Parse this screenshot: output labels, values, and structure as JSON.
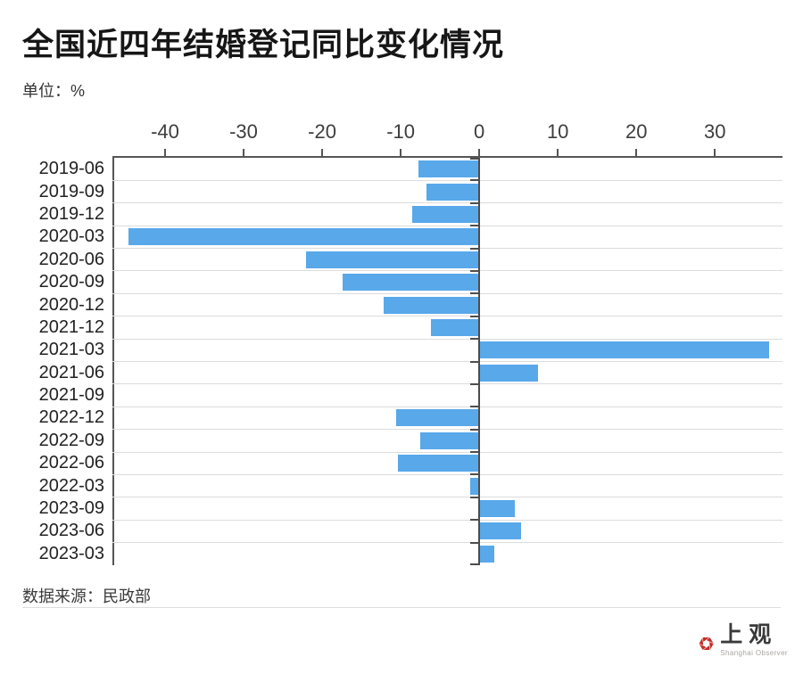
{
  "header": {
    "unit_label": "单位：%"
  },
  "chart_data": {
    "type": "bar",
    "orientation": "horizontal",
    "title": "全国近四年结婚登记同比变化情况",
    "unit": "%",
    "categories": [
      "2019-06",
      "2019-09",
      "2019-12",
      "2020-03",
      "2020-06",
      "2020-09",
      "2020-12",
      "2021-12",
      "2021-03",
      "2021-06",
      "2021-09",
      "2022-12",
      "2022-09",
      "2022-06",
      "2022-03",
      "2023-09",
      "2023-06",
      "2023-03"
    ],
    "values": [
      -7.7,
      -6.7,
      -8.5,
      -44.7,
      -22.1,
      -17.4,
      -12.2,
      -6.1,
      36.9,
      7.5,
      -0.1,
      -10.6,
      -7.5,
      -10.3,
      -1.2,
      4.5,
      5.3,
      1.9
    ],
    "x_ticks": [
      -40,
      -30,
      -20,
      -10,
      0,
      10,
      20,
      30
    ],
    "xlim": [
      -46.7,
      38.6
    ],
    "grid": true,
    "legend": "none",
    "bar_color": "#58a8ea",
    "axis_color": "#555555",
    "gridline_color": "#dcdcdc"
  },
  "footer": {
    "source": "数据来源：民政部"
  },
  "logo": {
    "text": "上观",
    "subtext": "Shanghai Observer",
    "icon": "shutter-hexagon-icon",
    "icon_color": "#c22e28"
  }
}
